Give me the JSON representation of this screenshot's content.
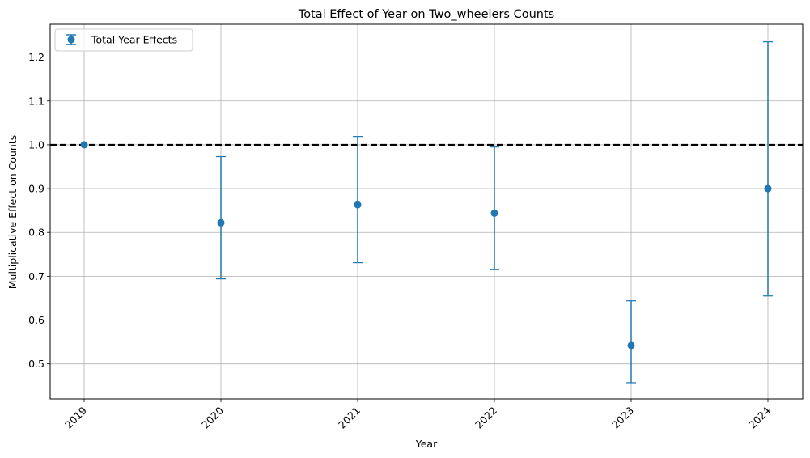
{
  "chart_data": {
    "type": "scatter",
    "title": "Total Effect of Year on Two_wheelers Counts",
    "xlabel": "Year",
    "ylabel": "Multiplicative Effect on Counts",
    "categories": [
      "2019",
      "2020",
      "2021",
      "2022",
      "2023",
      "2024"
    ],
    "series": [
      {
        "name": "Total Year Effects",
        "values": [
          1.0,
          0.822,
          0.863,
          0.844,
          0.542,
          0.9
        ],
        "lower": [
          1.0,
          0.694,
          0.731,
          0.715,
          0.457,
          0.655
        ],
        "upper": [
          1.0,
          0.973,
          1.019,
          0.995,
          0.644,
          1.235
        ]
      }
    ],
    "reference_line": 1.0,
    "ylim": [
      0.42,
      1.275
    ],
    "yticks": [
      "0.5",
      "0.6",
      "0.7",
      "0.8",
      "0.9",
      "1.0",
      "1.1",
      "1.2"
    ],
    "grid": true,
    "legend_position": "top-left",
    "colors": {
      "series": "#1f77b4",
      "reference_line": "#000000",
      "grid": "#b0b0b0"
    }
  }
}
